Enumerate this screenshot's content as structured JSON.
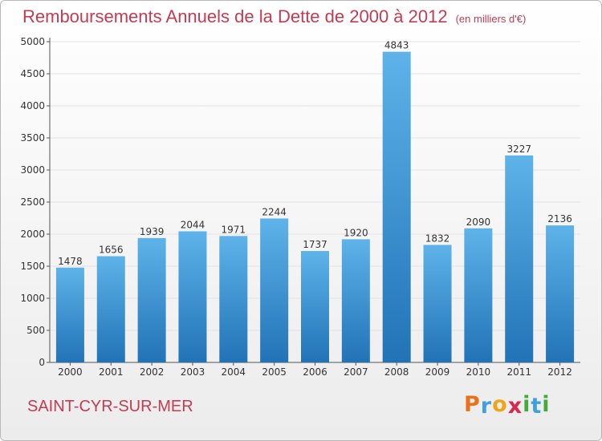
{
  "title": "Remboursements Annuels de la Dette de 2000 à 2012",
  "subtitle": "(en milliers d'€)",
  "town": "SAINT-CYR-SUR-MER",
  "logo": {
    "letters": [
      "P",
      "r",
      "o",
      "x",
      "i",
      "t",
      "i"
    ],
    "colors": [
      "#e8731c",
      "#3fa0dc",
      "#f0a519",
      "#d8284d",
      "#45aa3a",
      "#3fa0dc",
      "#45aa3a"
    ]
  },
  "colors": {
    "bar_top": "#5eb3e9",
    "bar_bottom": "#2173b6",
    "title": "#c23c52",
    "grid": "#e2e2e2",
    "axis": "#555555"
  },
  "chart_data": {
    "type": "bar",
    "title": "Remboursements Annuels de la Dette de 2000 à 2012",
    "subtitle": "(en milliers d'€)",
    "categories": [
      "2000",
      "2001",
      "2002",
      "2003",
      "2004",
      "2005",
      "2006",
      "2007",
      "2008",
      "2009",
      "2010",
      "2011",
      "2012"
    ],
    "values": [
      1478,
      1656,
      1939,
      2044,
      1971,
      2244,
      1737,
      1920,
      4843,
      1832,
      2090,
      3227,
      2136
    ],
    "ylim": [
      0,
      5000
    ],
    "yticks": [
      0,
      500,
      1000,
      1500,
      2000,
      2500,
      3000,
      3500,
      4000,
      4500,
      5000
    ],
    "grid": true,
    "legend": "none"
  }
}
